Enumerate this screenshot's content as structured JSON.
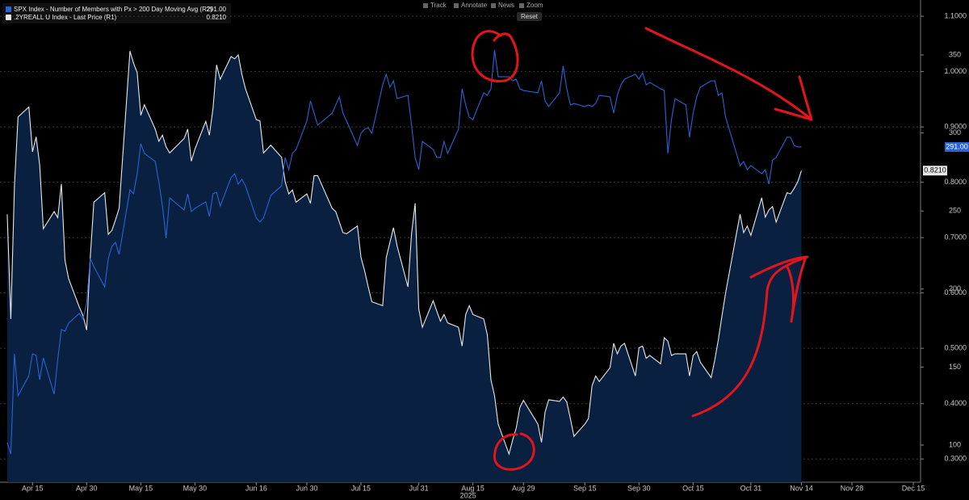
{
  "chart_data": {
    "type": "line",
    "x": [
      "2025-04-08",
      "2025-04-09",
      "2025-04-10",
      "2025-04-11",
      "2025-04-14",
      "2025-04-15",
      "2025-04-16",
      "2025-04-17",
      "2025-04-18",
      "2025-04-21",
      "2025-04-22",
      "2025-04-23",
      "2025-04-24",
      "2025-04-25",
      "2025-04-28",
      "2025-04-29",
      "2025-04-30",
      "2025-05-01",
      "2025-05-02",
      "2025-05-05",
      "2025-05-06",
      "2025-05-07",
      "2025-05-08",
      "2025-05-09",
      "2025-05-12",
      "2025-05-13",
      "2025-05-14",
      "2025-05-15",
      "2025-05-16",
      "2025-05-19",
      "2025-05-20",
      "2025-05-21",
      "2025-05-22",
      "2025-05-23",
      "2025-05-27",
      "2025-05-28",
      "2025-05-29",
      "2025-05-30",
      "2025-06-02",
      "2025-06-03",
      "2025-06-04",
      "2025-06-05",
      "2025-06-06",
      "2025-06-09",
      "2025-06-10",
      "2025-06-11",
      "2025-06-12",
      "2025-06-13",
      "2025-06-16",
      "2025-06-17",
      "2025-06-18",
      "2025-06-20",
      "2025-06-23",
      "2025-06-24",
      "2025-06-25",
      "2025-06-26",
      "2025-06-27",
      "2025-06-30",
      "2025-07-01",
      "2025-07-02",
      "2025-07-03",
      "2025-07-07",
      "2025-07-08",
      "2025-07-09",
      "2025-07-10",
      "2025-07-11",
      "2025-07-14",
      "2025-07-15",
      "2025-07-16",
      "2025-07-17",
      "2025-07-18",
      "2025-07-21",
      "2025-07-22",
      "2025-07-23",
      "2025-07-24",
      "2025-07-25",
      "2025-07-28",
      "2025-07-29",
      "2025-07-30",
      "2025-07-31",
      "2025-08-01",
      "2025-08-04",
      "2025-08-05",
      "2025-08-06",
      "2025-08-07",
      "2025-08-08",
      "2025-08-11",
      "2025-08-12",
      "2025-08-13",
      "2025-08-14",
      "2025-08-15",
      "2025-08-18",
      "2025-08-19",
      "2025-08-20",
      "2025-08-21",
      "2025-08-22",
      "2025-08-25",
      "2025-08-26",
      "2025-08-27",
      "2025-08-28",
      "2025-08-29",
      "2025-09-02",
      "2025-09-03",
      "2025-09-04",
      "2025-09-05",
      "2025-09-08",
      "2025-09-09",
      "2025-09-10",
      "2025-09-11",
      "2025-09-12",
      "2025-09-15",
      "2025-09-16",
      "2025-09-17",
      "2025-09-18",
      "2025-09-19",
      "2025-09-22",
      "2025-09-23",
      "2025-09-24",
      "2025-09-25",
      "2025-09-26",
      "2025-09-29",
      "2025-09-30",
      "2025-10-01",
      "2025-10-02",
      "2025-10-03",
      "2025-10-06",
      "2025-10-07",
      "2025-10-08",
      "2025-10-09",
      "2025-10-10",
      "2025-10-13",
      "2025-10-14",
      "2025-10-15",
      "2025-10-16",
      "2025-10-17",
      "2025-10-20",
      "2025-10-21",
      "2025-10-22",
      "2025-10-23",
      "2025-10-24",
      "2025-10-27",
      "2025-10-28",
      "2025-10-29",
      "2025-10-30",
      "2025-10-31",
      "2025-11-03",
      "2025-11-04",
      "2025-11-05",
      "2025-11-06",
      "2025-11-07",
      "2025-11-10",
      "2025-11-11",
      "2025-11-12",
      "2025-11-13",
      "2025-11-14"
    ],
    "series": [
      {
        "name": "SPX Index - Number of Members with Px > 200 Day Moving Avg (R2)",
        "color": "#2a63d4",
        "axis": "y2",
        "last_value_label": "291.00",
        "values": [
          101.6,
          94.3,
          158.5,
          131.6,
          144.5,
          158.5,
          157.5,
          141.9,
          155.9,
          132.6,
          154.9,
          174,
          173,
          178.2,
          184.4,
          180.7,
          191.1,
          219.6,
          214.4,
          201.4,
          219.6,
          227.3,
          229.9,
          222.2,
          263.6,
          261,
          273.9,
          293.1,
          286.9,
          281.7,
          268.7,
          253.2,
          232.5,
          258.4,
          250.6,
          261,
          249.6,
          251.7,
          255.8,
          246.5,
          261,
          262,
          253.2,
          271.3,
          273.9,
          267.2,
          270.3,
          266.1,
          245.5,
          242.9,
          245.5,
          259.9,
          266.1,
          284.3,
          276.5,
          286.9,
          289.4,
          307.6,
          320.5,
          312.7,
          305,
          312.7,
          317.9,
          323.1,
          312.7,
          307.6,
          292,
          299.8,
          302.4,
          303.4,
          299.8,
          330.8,
          337.6,
          329.3,
          333.4,
          322,
          324.1,
          305,
          284.3,
          276.5,
          294.6,
          289.4,
          284.3,
          284.3,
          294.6,
          286.9,
          302.4,
          328.3,
          317.9,
          310.1,
          308.6,
          325.7,
          324.1,
          328.3,
          353.1,
          336,
          336,
          333.4,
          334.5,
          328.3,
          327.2,
          325.7,
          333.4,
          320.5,
          316.9,
          325.7,
          342.8,
          328.3,
          317.9,
          318.9,
          316.9,
          317.9,
          316.9,
          318.9,
          324.1,
          323.1,
          312.7,
          324.1,
          330.8,
          334.5,
          337.6,
          334.5,
          338.6,
          330.8,
          332.4,
          328.3,
          327.2,
          286.9,
          308.6,
          322,
          317.9,
          297.2,
          312.7,
          323.1,
          329.3,
          333.4,
          333.4,
          324.1,
          325.7,
          310.1,
          286.9,
          279.1,
          281.7,
          276.5,
          279.1,
          273.9,
          276.5,
          267.2,
          282.7,
          284.3,
          297.2,
          297.2,
          292,
          291,
          291
        ]
      },
      {
        "name": ".2YREALL U Index - Last Price (R1)",
        "color": "#e8e8e8",
        "area_color": "#0a2244",
        "axis": "y",
        "last_value_label": "0.8210",
        "values": [
          0.742,
          0.553,
          0.793,
          0.918,
          0.936,
          0.855,
          0.882,
          0.831,
          0.716,
          0.747,
          0.736,
          0.797,
          0.659,
          0.626,
          0.574,
          0.559,
          0.533,
          0.664,
          0.764,
          0.781,
          0.706,
          0.713,
          0.732,
          0.753,
          1.037,
          1.015,
          0.998,
          0.921,
          0.94,
          0.896,
          0.874,
          0.885,
          0.864,
          0.853,
          0.879,
          0.896,
          0.838,
          0.86,
          0.91,
          0.885,
          0.933,
          1.012,
          0.986,
          1.027,
          1.023,
          1.03,
          0.995,
          0.969,
          0.913,
          0.911,
          0.853,
          0.867,
          0.845,
          0.801,
          0.779,
          0.786,
          0.764,
          0.779,
          0.762,
          0.812,
          0.812,
          0.753,
          0.747,
          0.728,
          0.709,
          0.707,
          0.721,
          0.664,
          0.64,
          0.611,
          0.584,
          0.577,
          0.664,
          0.691,
          0.718,
          0.685,
          0.611,
          0.707,
          0.762,
          0.571,
          0.538,
          0.586,
          0.567,
          0.549,
          0.561,
          0.546,
          0.538,
          0.504,
          0.561,
          0.577,
          0.561,
          0.553,
          0.524,
          0.443,
          0.414,
          0.363,
          0.309,
          0.334,
          0.356,
          0.393,
          0.406,
          0.363,
          0.33,
          0.385,
          0.407,
          0.404,
          0.412,
          0.403,
          0.373,
          0.341,
          0.363,
          0.373,
          0.432,
          0.45,
          0.44,
          0.465,
          0.509,
          0.49,
          0.504,
          0.509,
          0.45,
          0.501,
          0.504,
          0.482,
          0.487,
          0.472,
          0.519,
          0.513,
          0.487,
          0.49,
          0.49,
          0.45,
          0.487,
          0.494,
          0.475,
          0.447,
          0.479,
          0.516,
          0.559,
          0.6,
          0.707,
          0.742,
          0.709,
          0.721,
          0.704,
          0.772,
          0.737,
          0.75,
          0.756,
          0.728,
          0.781,
          0.779,
          0.789,
          0.801,
          0.821
        ]
      }
    ],
    "xlim": [
      "2025-04-06",
      "2025-12-17"
    ],
    "xticks": [
      {
        "value": "2025-04-15",
        "label": "Apr 15"
      },
      {
        "value": "2025-04-30",
        "label": "Apr 30"
      },
      {
        "value": "2025-05-15",
        "label": "May 15"
      },
      {
        "value": "2025-05-30",
        "label": "May 30"
      },
      {
        "value": "2025-06-16",
        "label": "Jun 16"
      },
      {
        "value": "2025-06-30",
        "label": "Jun 30"
      },
      {
        "value": "2025-07-15",
        "label": "Jul 15"
      },
      {
        "value": "2025-07-31",
        "label": "Jul 31"
      },
      {
        "value": "2025-08-15",
        "label": "Aug 15"
      },
      {
        "value": "2025-08-29",
        "label": "Aug 29"
      },
      {
        "value": "2025-09-15",
        "label": "Sep 15"
      },
      {
        "value": "2025-09-30",
        "label": "Sep 30"
      },
      {
        "value": "2025-10-15",
        "label": "Oct 15"
      },
      {
        "value": "2025-10-31",
        "label": "Oct 31"
      },
      {
        "value": "2025-11-14",
        "label": "Nov 14"
      },
      {
        "value": "2025-11-28",
        "label": "Nov 28"
      },
      {
        "value": "2025-12-15",
        "label": "Dec 15"
      }
    ],
    "x_year_label": "2025",
    "ylim": [
      0.258,
      1.122
    ],
    "yticks": [
      {
        "value": 0.3,
        "label": "0.3000"
      },
      {
        "value": 0.4,
        "label": "0.4000"
      },
      {
        "value": 0.5,
        "label": "0.5000"
      },
      {
        "value": 0.6,
        "label": "0.6000"
      },
      {
        "value": 0.7,
        "label": "0.7000"
      },
      {
        "value": 0.8,
        "label": "0.8000"
      },
      {
        "value": 0.9,
        "label": "0.9000"
      },
      {
        "value": 1.0,
        "label": "1.0000"
      },
      {
        "value": 1.1,
        "label": "1.1000"
      }
    ],
    "y2lim": [
      76.2,
      382.6
    ],
    "y2ticks": [
      100,
      150,
      200,
      250,
      300,
      350
    ],
    "grid": true
  },
  "toolbar": [
    "Track",
    "Annotate",
    "News",
    "Zoom",
    "Reset"
  ]
}
